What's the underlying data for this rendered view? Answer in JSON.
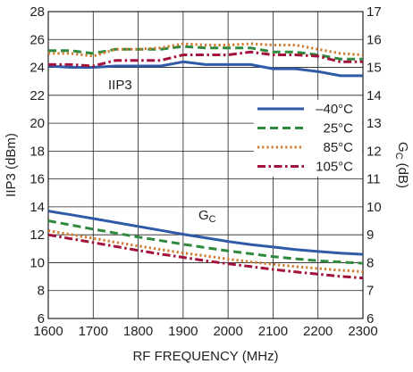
{
  "chart_data": {
    "type": "line",
    "xlabel": "RF FREQUENCY (MHz)",
    "ylabel_left": "IIP3 (dBm)",
    "ylabel_right": {
      "main": "G",
      "sub": "C",
      "unit": "(dB)"
    },
    "xlim": [
      1600,
      2300
    ],
    "ylim_left": [
      6,
      28
    ],
    "ylim_right": [
      6,
      17
    ],
    "x_ticks": [
      "1600",
      "1700",
      "1800",
      "1900",
      "2000",
      "2100",
      "2200",
      "2300"
    ],
    "y_left_ticks": [
      "6",
      "8",
      "10",
      "12",
      "14",
      "16",
      "18",
      "20",
      "22",
      "24",
      "26",
      "28"
    ],
    "y_right_ticks": [
      "6",
      "7",
      "8",
      "9",
      "10",
      "11",
      "12",
      "13",
      "14",
      "15",
      "16",
      "17"
    ],
    "grid": true,
    "legend_position": "right-middle",
    "annotations": {
      "iip3": "IIP3",
      "gc_main": "G",
      "gc_sub": "C"
    },
    "x": [
      1600,
      1650,
      1700,
      1750,
      1800,
      1850,
      1900,
      1950,
      2000,
      2050,
      2100,
      2150,
      2200,
      2250,
      2300
    ],
    "series": [
      {
        "name": "–40°C",
        "color": "#2e5aa8",
        "dash": "solid",
        "axis": "left",
        "group": "IIP3",
        "values": [
          24.1,
          24.0,
          24.0,
          24.1,
          24.1,
          24.1,
          24.4,
          24.2,
          24.2,
          24.2,
          23.9,
          23.9,
          23.7,
          23.4,
          23.4
        ]
      },
      {
        "name": "25°C",
        "color": "#2f8a3d",
        "dash": "long",
        "axis": "left",
        "group": "IIP3",
        "values": [
          25.2,
          25.2,
          25.0,
          25.3,
          25.3,
          25.3,
          25.5,
          25.4,
          25.4,
          25.4,
          25.1,
          25.1,
          24.9,
          24.6,
          24.6
        ]
      },
      {
        "name": "85°C",
        "color": "#d07a2c",
        "dash": "dot",
        "axis": "left",
        "group": "IIP3",
        "values": [
          25.0,
          25.0,
          24.8,
          25.3,
          25.3,
          25.4,
          25.7,
          25.6,
          25.6,
          25.7,
          25.6,
          25.6,
          25.3,
          25.0,
          24.9
        ]
      },
      {
        "name": "105°C",
        "color": "#a3123a",
        "dash": "dashdot",
        "axis": "left",
        "group": "IIP3",
        "values": [
          24.2,
          24.2,
          24.1,
          24.5,
          24.5,
          24.5,
          24.9,
          24.9,
          24.9,
          25.1,
          24.9,
          24.9,
          24.8,
          24.4,
          24.4
        ]
      },
      {
        "name": "–40°C",
        "color": "#2e5aa8",
        "dash": "solid",
        "axis": "right",
        "group": "GC",
        "values": [
          9.85,
          9.72,
          9.58,
          9.44,
          9.3,
          9.16,
          9.02,
          8.89,
          8.76,
          8.65,
          8.56,
          8.47,
          8.4,
          8.34,
          8.3
        ]
      },
      {
        "name": "25°C",
        "color": "#2f8a3d",
        "dash": "long",
        "axis": "right",
        "group": "GC",
        "values": [
          9.5,
          9.35,
          9.2,
          9.06,
          8.92,
          8.79,
          8.66,
          8.54,
          8.42,
          8.32,
          8.22,
          8.14,
          8.07,
          8.02,
          7.98
        ]
      },
      {
        "name": "85°C",
        "color": "#d07a2c",
        "dash": "dot",
        "axis": "right",
        "group": "GC",
        "values": [
          9.15,
          9.01,
          8.87,
          8.73,
          8.6,
          8.47,
          8.35,
          8.24,
          8.13,
          8.03,
          7.94,
          7.86,
          7.79,
          7.73,
          7.68
        ]
      },
      {
        "name": "105°C",
        "color": "#a3123a",
        "dash": "dashdot",
        "axis": "right",
        "group": "GC",
        "values": [
          9.0,
          8.86,
          8.72,
          8.58,
          8.44,
          8.31,
          8.19,
          8.07,
          7.96,
          7.86,
          7.76,
          7.67,
          7.59,
          7.51,
          7.45
        ]
      }
    ],
    "legend": [
      {
        "name": "–40°C",
        "color": "#2e5aa8",
        "dash": "solid"
      },
      {
        "name": "25°C",
        "color": "#2f8a3d",
        "dash": "long"
      },
      {
        "name": "85°C",
        "color": "#d07a2c",
        "dash": "dot"
      },
      {
        "name": "105°C",
        "color": "#a3123a",
        "dash": "dashdot"
      }
    ]
  }
}
